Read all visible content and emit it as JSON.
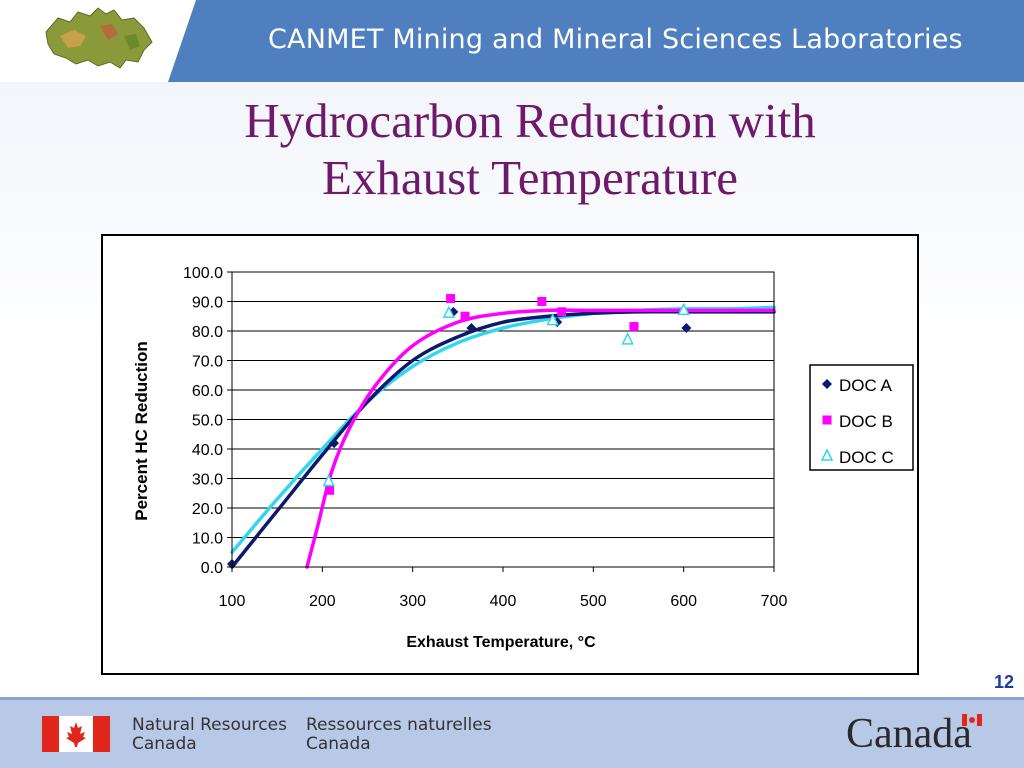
{
  "header": {
    "title": "CANMET Mining and Mineral Sciences Laboratories"
  },
  "slide": {
    "title_line1": "Hydrocarbon Reduction with",
    "title_line2": "Exhaust Temperature",
    "page_number": "12"
  },
  "footer": {
    "en_line1": "Natural Resources",
    "en_line2": "Canada",
    "fr_line1": "Ressources naturelles",
    "fr_line2": "Canada",
    "wordmark": "Canada"
  },
  "colors": {
    "header_band": "#4f7fbf",
    "title": "#6d1a6b",
    "doc_a": "#0b1a6b",
    "doc_b": "#ff00ff",
    "doc_c": "#33d6f0",
    "flag_red": "#e1261c"
  },
  "chart_data": {
    "type": "scatter",
    "xlabel": "Exhaust Temperature, °C",
    "ylabel": "Percent HC Reduction",
    "xlim": [
      100,
      700
    ],
    "ylim": [
      0,
      100
    ],
    "x_ticks": [
      "100",
      "200",
      "300",
      "400",
      "500",
      "600",
      "700"
    ],
    "y_ticks": [
      "0.0",
      "10.0",
      "20.0",
      "30.0",
      "40.0",
      "50.0",
      "60.0",
      "70.0",
      "80.0",
      "90.0",
      "100.0"
    ],
    "grid": "horizontal",
    "legend_position": "right",
    "series": [
      {
        "name": "DOC A",
        "marker": "diamond",
        "color": "#0b1a6b",
        "points": [
          [
            100,
            1
          ],
          [
            213,
            42
          ],
          [
            345,
            86.5
          ],
          [
            365,
            81
          ],
          [
            460,
            83
          ],
          [
            545,
            81.5
          ],
          [
            603,
            81
          ]
        ],
        "trend": [
          [
            100,
            0
          ],
          [
            150,
            19
          ],
          [
            200,
            38
          ],
          [
            250,
            56
          ],
          [
            300,
            70
          ],
          [
            350,
            78
          ],
          [
            400,
            83
          ],
          [
            450,
            85
          ],
          [
            500,
            86
          ],
          [
            550,
            86.5
          ],
          [
            600,
            86.5
          ],
          [
            650,
            86.5
          ],
          [
            700,
            86.5
          ]
        ]
      },
      {
        "name": "DOC B",
        "marker": "square",
        "color": "#ff00ff",
        "points": [
          [
            208,
            26
          ],
          [
            342,
            91
          ],
          [
            358,
            85
          ],
          [
            443,
            90
          ],
          [
            465,
            86.5
          ],
          [
            545,
            81.5
          ]
        ],
        "trend": [
          [
            183,
            0
          ],
          [
            195,
            14
          ],
          [
            210,
            32
          ],
          [
            230,
            47
          ],
          [
            260,
            62
          ],
          [
            300,
            75
          ],
          [
            350,
            83
          ],
          [
            400,
            86
          ],
          [
            450,
            87
          ],
          [
            500,
            87
          ],
          [
            600,
            87
          ],
          [
            700,
            87
          ]
        ]
      },
      {
        "name": "DOC C",
        "marker": "triangle",
        "color": "#33d6f0",
        "points": [
          [
            207,
            29
          ],
          [
            340,
            86
          ],
          [
            455,
            83.5
          ],
          [
            538,
            77
          ],
          [
            600,
            87
          ]
        ],
        "trend": [
          [
            100,
            5
          ],
          [
            150,
            23
          ],
          [
            200,
            40
          ],
          [
            250,
            56
          ],
          [
            300,
            68
          ],
          [
            350,
            76
          ],
          [
            400,
            81
          ],
          [
            450,
            84
          ],
          [
            500,
            86
          ],
          [
            550,
            87
          ],
          [
            600,
            87.5
          ],
          [
            650,
            87.5
          ],
          [
            700,
            88
          ]
        ]
      }
    ]
  }
}
